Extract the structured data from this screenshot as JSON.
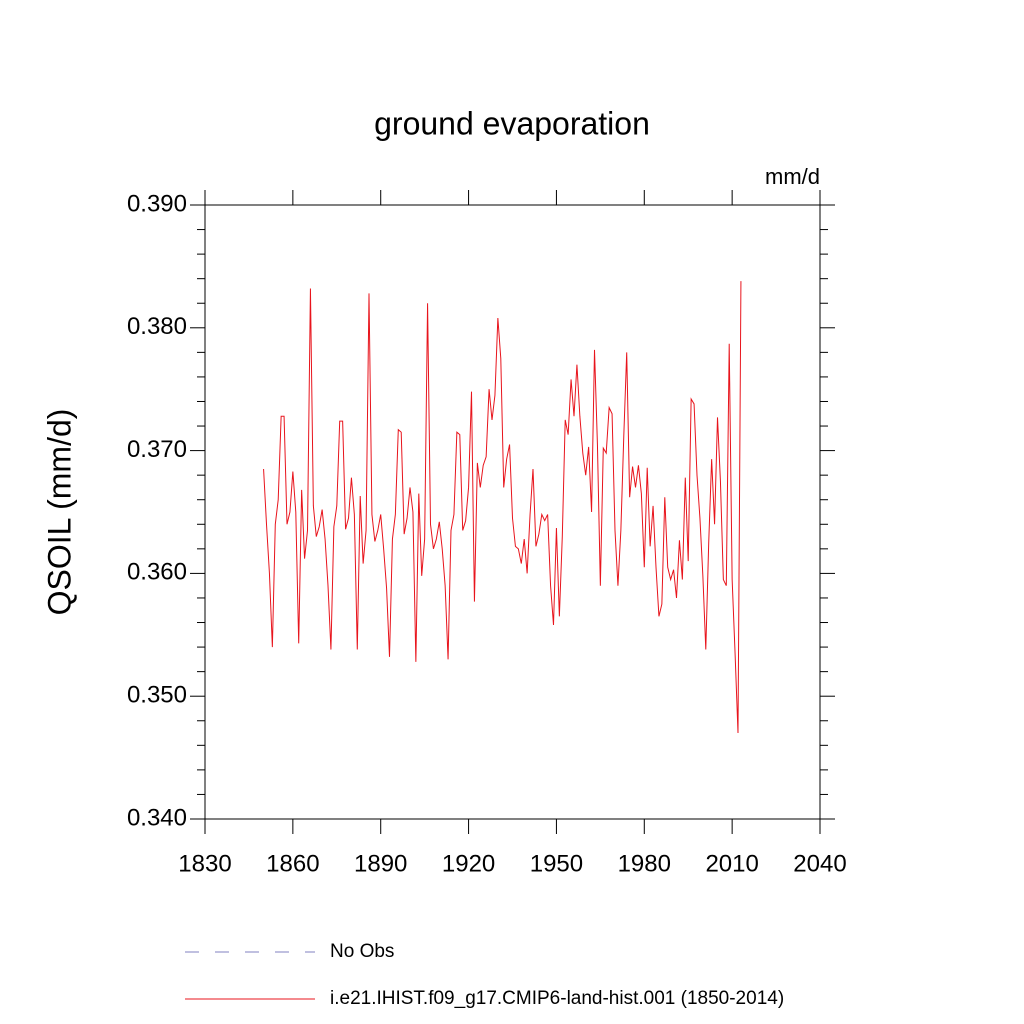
{
  "chart_data": {
    "type": "line",
    "title": "ground evaporation",
    "units": "mm/d",
    "y_label": "QSOIL  (mm/d)",
    "x": [
      1850,
      1851,
      1852,
      1853,
      1854,
      1855,
      1856,
      1857,
      1858,
      1859,
      1860,
      1861,
      1862,
      1863,
      1864,
      1865,
      1866,
      1867,
      1868,
      1869,
      1870,
      1871,
      1872,
      1873,
      1874,
      1875,
      1876,
      1877,
      1878,
      1879,
      1880,
      1881,
      1882,
      1883,
      1884,
      1885,
      1886,
      1887,
      1888,
      1889,
      1890,
      1891,
      1892,
      1893,
      1894,
      1895,
      1896,
      1897,
      1898,
      1899,
      1900,
      1901,
      1902,
      1903,
      1904,
      1905,
      1906,
      1907,
      1908,
      1909,
      1910,
      1911,
      1912,
      1913,
      1914,
      1915,
      1916,
      1917,
      1918,
      1919,
      1920,
      1921,
      1922,
      1923,
      1924,
      1925,
      1926,
      1927,
      1928,
      1929,
      1930,
      1931,
      1932,
      1933,
      1934,
      1935,
      1936,
      1937,
      1938,
      1939,
      1940,
      1941,
      1942,
      1943,
      1944,
      1945,
      1946,
      1947,
      1948,
      1949,
      1950,
      1951,
      1952,
      1953,
      1954,
      1955,
      1956,
      1957,
      1958,
      1959,
      1960,
      1961,
      1962,
      1963,
      1964,
      1965,
      1966,
      1967,
      1968,
      1969,
      1970,
      1971,
      1972,
      1973,
      1974,
      1975,
      1976,
      1977,
      1978,
      1979,
      1980,
      1981,
      1982,
      1983,
      1984,
      1985,
      1986,
      1987,
      1988,
      1989,
      1990,
      1991,
      1992,
      1993,
      1994,
      1995,
      1996,
      1997,
      1998,
      1999,
      2000,
      2001,
      2002,
      2003,
      2004,
      2005,
      2006,
      2007,
      2008,
      2009,
      2010,
      2011,
      2012,
      2013
    ],
    "series": [
      {
        "name": "No Obs",
        "color": "#8080c0",
        "dash": true,
        "values": [
          null,
          null,
          null,
          null,
          null,
          null,
          null,
          null,
          null,
          null,
          null,
          null,
          null,
          null,
          null,
          null,
          null,
          null,
          null,
          null,
          null,
          null,
          null,
          null,
          null,
          null,
          null,
          null,
          null,
          null,
          null,
          null,
          null,
          null,
          null,
          null,
          null,
          null,
          null,
          null,
          null,
          null,
          null,
          null,
          null,
          null,
          null,
          null,
          null,
          null,
          null,
          null,
          null,
          null,
          null,
          null,
          null,
          null,
          null,
          null,
          null,
          null,
          null,
          null,
          null,
          null,
          null,
          null,
          null,
          null,
          null,
          null,
          null,
          null,
          null,
          null,
          null,
          null,
          null,
          null,
          null,
          null,
          null,
          null,
          null,
          null,
          null,
          null,
          null,
          null,
          null,
          null,
          null,
          null,
          null,
          null,
          null,
          null,
          null,
          null,
          null,
          null,
          null,
          null,
          null,
          null,
          null,
          null,
          null,
          null,
          null,
          null,
          null,
          null,
          null,
          null,
          null,
          null,
          null,
          null,
          null,
          null,
          null,
          null,
          null,
          null,
          null,
          null,
          null,
          null,
          null,
          null,
          null,
          null,
          null,
          null,
          null,
          null,
          null,
          null,
          null,
          null,
          null,
          null,
          null,
          null,
          null,
          null,
          null,
          null,
          null,
          null,
          null,
          null,
          null,
          null,
          null,
          null,
          null,
          null,
          null,
          null,
          null,
          null
        ]
      },
      {
        "name": "i.e21.IHIST.f09_g17.CMIP6-land-hist.001 (1850-2014)",
        "color": "#e8141c",
        "dash": false,
        "values": [
          0.3685,
          0.364,
          0.36,
          0.354,
          0.364,
          0.366,
          0.3728,
          0.3728,
          0.364,
          0.365,
          0.3683,
          0.365,
          0.3543,
          0.3668,
          0.3612,
          0.3635,
          0.3832,
          0.3655,
          0.363,
          0.3638,
          0.3652,
          0.3628,
          0.359,
          0.3538,
          0.3638,
          0.3655,
          0.3724,
          0.3724,
          0.3636,
          0.3645,
          0.3678,
          0.3648,
          0.3538,
          0.3663,
          0.3608,
          0.3635,
          0.3828,
          0.3648,
          0.3626,
          0.3635,
          0.3648,
          0.362,
          0.3588,
          0.3532,
          0.3628,
          0.3648,
          0.3717,
          0.3715,
          0.3632,
          0.3645,
          0.367,
          0.365,
          0.3528,
          0.3665,
          0.3598,
          0.3628,
          0.382,
          0.364,
          0.362,
          0.3628,
          0.3642,
          0.362,
          0.359,
          0.353,
          0.3635,
          0.3648,
          0.3715,
          0.3713,
          0.3635,
          0.3643,
          0.367,
          0.3748,
          0.3577,
          0.369,
          0.367,
          0.3688,
          0.3695,
          0.375,
          0.3725,
          0.3745,
          0.3808,
          0.3775,
          0.367,
          0.3693,
          0.3705,
          0.3645,
          0.3622,
          0.362,
          0.3608,
          0.3628,
          0.36,
          0.3648,
          0.3685,
          0.3622,
          0.3632,
          0.3648,
          0.3643,
          0.3648,
          0.359,
          0.3558,
          0.3637,
          0.3565,
          0.363,
          0.3725,
          0.3713,
          0.3758,
          0.3728,
          0.377,
          0.3728,
          0.3698,
          0.368,
          0.3703,
          0.365,
          0.3782,
          0.3705,
          0.359,
          0.3702,
          0.3698,
          0.3735,
          0.373,
          0.3635,
          0.359,
          0.3635,
          0.3712,
          0.378,
          0.3662,
          0.3687,
          0.367,
          0.3688,
          0.3665,
          0.3605,
          0.3686,
          0.3622,
          0.3655,
          0.3605,
          0.3565,
          0.3575,
          0.3662,
          0.3605,
          0.3595,
          0.3603,
          0.358,
          0.3627,
          0.3595,
          0.3678,
          0.361,
          0.3742,
          0.3738,
          0.368,
          0.3645,
          0.3598,
          0.3538,
          0.3625,
          0.3693,
          0.364,
          0.3727,
          0.3675,
          0.3595,
          0.359,
          0.3787,
          0.3595,
          0.3535,
          0.347,
          0.3838
        ]
      }
    ],
    "xlim": [
      1830,
      2040
    ],
    "xticks": [
      1830,
      1860,
      1890,
      1920,
      1950,
      1980,
      2010,
      2040
    ],
    "ylim": [
      0.34,
      0.39
    ],
    "yticks": [
      {
        "value": 0.34,
        "label": "0.340"
      },
      {
        "value": 0.35,
        "label": "0.350"
      },
      {
        "value": 0.36,
        "label": "0.360"
      },
      {
        "value": 0.37,
        "label": "0.370"
      },
      {
        "value": 0.38,
        "label": "0.380"
      },
      {
        "value": 0.39,
        "label": "0.390"
      }
    ],
    "y_minor_per_major": 4,
    "grid": false
  }
}
